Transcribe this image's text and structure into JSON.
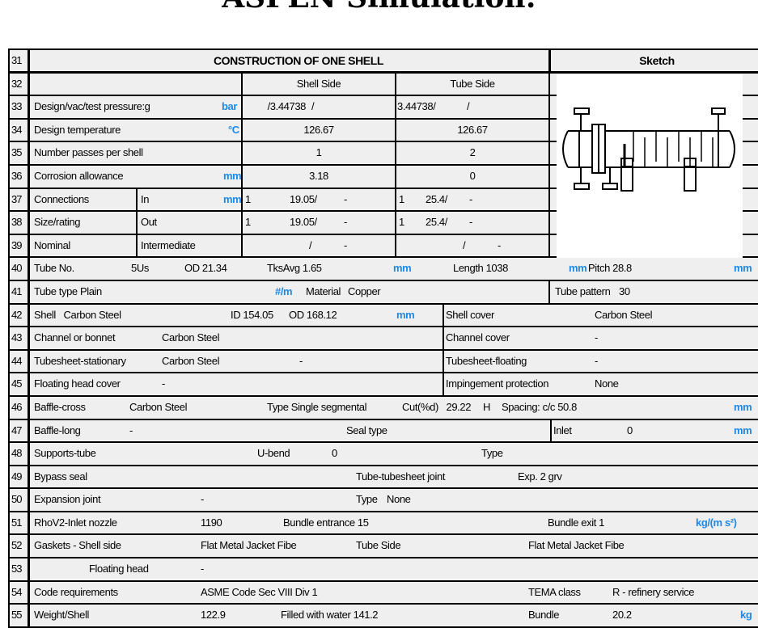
{
  "title": "ASPEN Simulation:",
  "header": {
    "num": "31",
    "title": "CONSTRUCTION OF ONE SHELL",
    "sketch": "Sketch"
  },
  "rows": {
    "r32": [
      "32",
      "Shell Side",
      "Tube Side"
    ],
    "r33": [
      "33",
      "Design/vac/test pressure:g",
      "bar",
      "3.44738/",
      "/",
      "3.44738/",
      "/"
    ],
    "r34": [
      "34",
      "Design temperature",
      "°C",
      "126.67",
      "126.67"
    ],
    "r35": [
      "35",
      "Number passes per shell",
      "1",
      "2"
    ],
    "r36": [
      "36",
      "Corrosion allowance",
      "mm",
      "3.18",
      "0"
    ],
    "r37": [
      "37",
      "Connections",
      "In",
      "mm",
      "1",
      "19.05/",
      "-",
      "1",
      "25.4/",
      "-"
    ],
    "r38": [
      "38",
      "Size/rating",
      "Out",
      "1",
      "19.05/",
      "-",
      "1",
      "25.4/",
      "-"
    ],
    "r39": [
      "39",
      "Nominal",
      "Intermediate",
      "/",
      "-",
      "/",
      "-"
    ],
    "r40": [
      "40",
      "Tube No.",
      "5Us",
      "OD  21.34",
      "TksAvg  1.65",
      "mm",
      "Length  1038",
      "mm",
      "Pitch  28.8",
      "mm"
    ],
    "r41": [
      "41",
      "Tube type  Plain",
      "#/m",
      "Material",
      "Copper",
      "Tube pattern",
      "30"
    ],
    "r42": [
      "42",
      "Shell   Carbon Steel",
      "ID 154.05",
      "OD 168.12",
      "mm",
      "Shell cover",
      "Carbon Steel"
    ],
    "r43": [
      "43",
      "Channel or bonnet",
      "Carbon Steel",
      "Channel cover",
      "-"
    ],
    "r44": [
      "44",
      "Tubesheet-stationary",
      "Carbon Steel",
      "-",
      "Tubesheet-floating",
      "-"
    ],
    "r45": [
      "45",
      "Floating head cover",
      "-",
      "Impingement protection",
      "None"
    ],
    "r46": [
      "46",
      "Baffle-cross",
      "Carbon Steel",
      "Type  Single segmental",
      "Cut(%d)   29.22",
      "H",
      "Spacing: c/c  50.8",
      "mm"
    ],
    "r47": [
      "47",
      "Baffle-long",
      "-",
      "Seal type",
      "Inlet",
      "0",
      "mm"
    ],
    "r48": [
      "48",
      "Supports-tube",
      "U-bend",
      "0",
      "Type"
    ],
    "r49": [
      "49",
      "Bypass seal",
      "Tube-tubesheet joint",
      "Exp. 2 grv"
    ],
    "r50": [
      "50",
      "Expansion joint",
      "-",
      "Type",
      "None"
    ],
    "r51": [
      "51",
      "RhoV2-Inlet nozzle",
      "1190",
      "Bundle entrance  15",
      "Bundle exit  1",
      "kg/(m s²)"
    ],
    "r52": [
      "52",
      "Gaskets - Shell side",
      "Flat Metal Jacket Fibe",
      "Tube Side",
      "Flat Metal Jacket Fibe"
    ],
    "r53": [
      "53",
      "Floating head",
      "-"
    ],
    "r54": [
      "54",
      "Code requirements",
      "ASME Code Sec VIII Div 1",
      "TEMA class",
      "R - refinery service"
    ],
    "r55": [
      "55",
      "Weight/Shell",
      "122.9",
      "Filled with water  141.2",
      "Bundle",
      "20.2",
      "kg"
    ]
  },
  "colors": {
    "unit": "#1e88e5",
    "background": "#efefef",
    "border": "#000000"
  },
  "sketch_icon": "heat-exchanger-sketch"
}
